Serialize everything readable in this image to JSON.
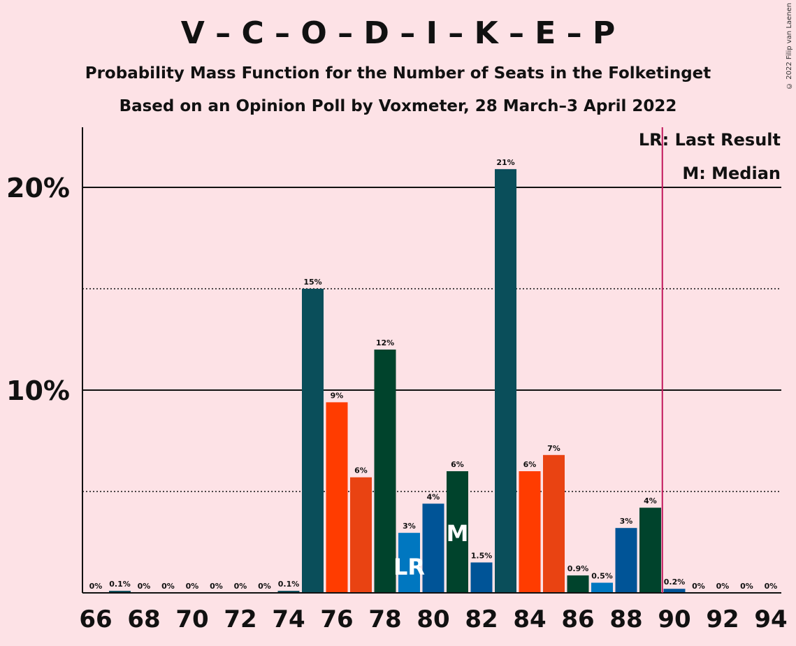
{
  "title": "V – C – O – D – I – K – E – P",
  "subtitle": "Probability Mass Function for the Number of Seats in the Folketinget",
  "subtitle2": "Based on an Opinion Poll by Voxmeter, 28 March–3 April 2022",
  "copyright": "© 2022 Filip van Laenen",
  "legend": {
    "last_result": "LR: Last Result",
    "median": "M: Median"
  },
  "chart_data": {
    "type": "bar",
    "x": [
      66,
      67,
      68,
      69,
      70,
      71,
      72,
      73,
      74,
      75,
      76,
      77,
      78,
      79,
      80,
      81,
      82,
      83,
      84,
      85,
      86,
      87,
      88,
      89,
      90,
      91,
      92,
      93,
      94
    ],
    "values": [
      0,
      0.1,
      0,
      0,
      0,
      0,
      0,
      0,
      0.1,
      15,
      9.4,
      5.7,
      12,
      2.96,
      4.4,
      6,
      1.5,
      20.9,
      6,
      6.8,
      0.86,
      0.5,
      3.2,
      4.2,
      0.2,
      0,
      0,
      0,
      0
    ],
    "labels": [
      "0%",
      "0.1%",
      "0%",
      "0%",
      "0%",
      "0%",
      "0%",
      "0%",
      "0.1%",
      "15%",
      "9%",
      "6%",
      "12%",
      "3%",
      "4%",
      "6%",
      "1.5%",
      "21%",
      "6%",
      "7%",
      "0.9%",
      "0.5%",
      "3%",
      "4%",
      "0.2%",
      "0%",
      "0%",
      "0%",
      "0%"
    ],
    "bar_colors": [
      "#0A4E5A",
      "#0A4E5A",
      "#0A4E5A",
      "#0A4E5A",
      "#0A4E5A",
      "#0A4E5A",
      "#0A4E5A",
      "#0A4E5A",
      "#0A4E5A",
      "#0A4E5A",
      "#FF3C00",
      "#E94312",
      "#00432C",
      "#0077C0",
      "#005497",
      "#00432C",
      "#005497",
      "#0A4E5A",
      "#FF3C00",
      "#E94312",
      "#00432C",
      "#0077C0",
      "#005497",
      "#00432C",
      "#005497",
      "#005497",
      "#005497",
      "#005497",
      "#005497"
    ],
    "xticks": [
      66,
      68,
      70,
      72,
      74,
      76,
      78,
      80,
      82,
      84,
      86,
      88,
      90,
      92,
      94
    ],
    "ytick_labels": [
      "10%",
      "20%"
    ],
    "yticks": [
      10,
      20
    ],
    "minor_yticks": [
      5,
      15
    ],
    "ylim": [
      0,
      23
    ],
    "last_result": 79,
    "last_result_marker": "LR",
    "median": 81,
    "median_marker": "M",
    "majority_line": 89.5,
    "grid": true
  }
}
